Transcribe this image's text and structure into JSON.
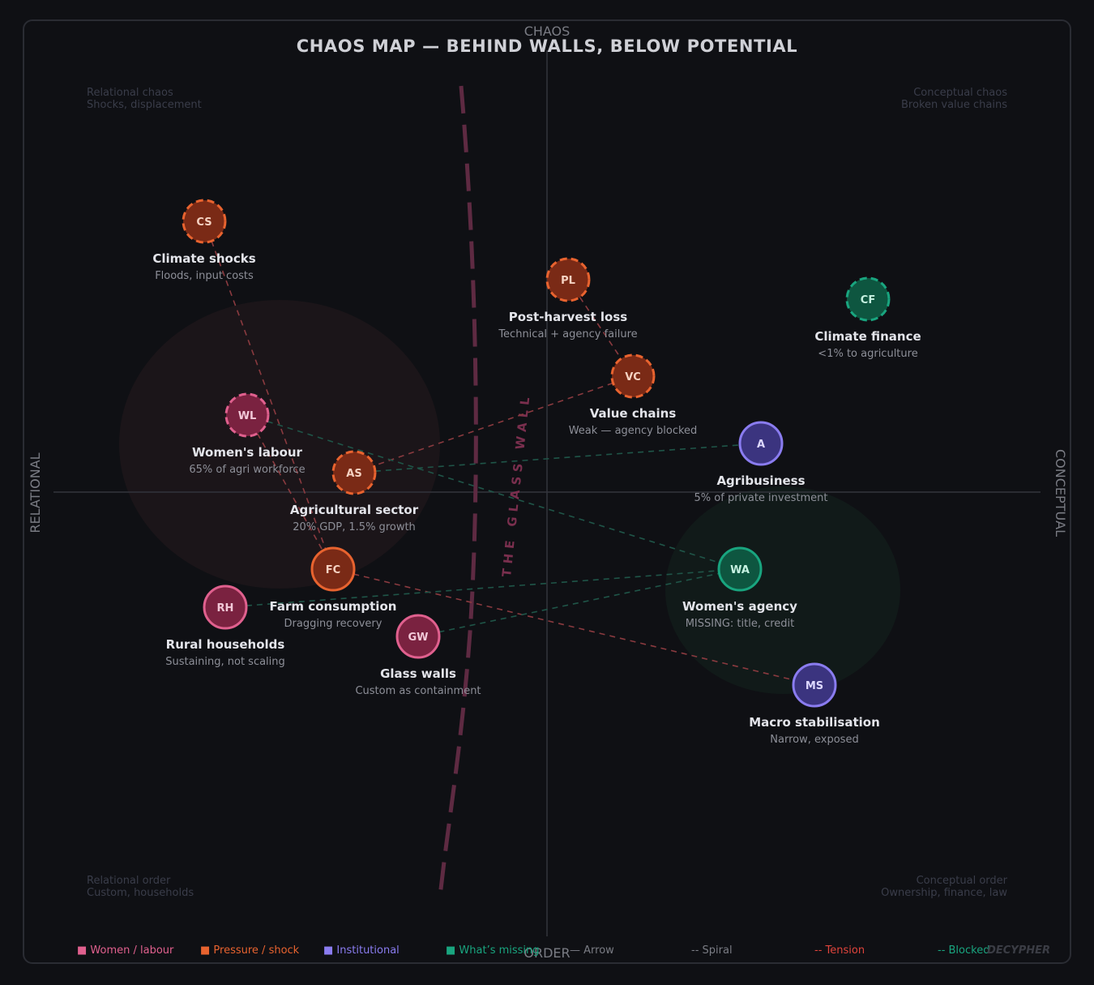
{
  "title": "CHAOS MAP — BEHIND WALLS, BELOW POTENTIAL",
  "axes": {
    "top": "CHAOS",
    "bottom": "ORDER",
    "left": "RELATIONAL",
    "right": "CONCEPTUAL"
  },
  "quadrants": {
    "top_left": [
      "Relational chaos",
      "Shocks, displacement"
    ],
    "top_right": [
      "Conceptual chaos",
      "Broken value chains"
    ],
    "bottom_left": [
      "Relational order",
      "Custom, households"
    ],
    "bottom_right": [
      "Conceptual order",
      "Ownership, finance, law"
    ]
  },
  "wall_label": "THE GLASS WALL",
  "colors": {
    "women": "#e0608e",
    "pressure": "#e8632f",
    "institutional": "#8a7cf0",
    "missing": "#19a57f",
    "tension": "#e0443c"
  },
  "nodes": [
    {
      "id": "CS",
      "label": "Climate shocks",
      "sub": "Floods, input costs",
      "kind": "pressure",
      "dashed": true
    },
    {
      "id": "PL",
      "label": "Post-harvest loss",
      "sub": "Technical + agency failure",
      "kind": "pressure",
      "dashed": true
    },
    {
      "id": "CF",
      "label": "Climate finance",
      "sub": "<1% to agriculture",
      "kind": "missing",
      "dashed": true
    },
    {
      "id": "VC",
      "label": "Value chains",
      "sub": "Weak — agency blocked",
      "kind": "pressure",
      "dashed": true
    },
    {
      "id": "WL",
      "label": "Women's labour",
      "sub": "65% of agri workforce",
      "kind": "women",
      "dashed": true
    },
    {
      "id": "A",
      "label": "Agribusiness",
      "sub": "5% of private investment",
      "kind": "institutional",
      "dashed": false
    },
    {
      "id": "AS",
      "label": "Agricultural sector",
      "sub": "20% GDP, 1.5% growth",
      "kind": "pressure",
      "dashed": true
    },
    {
      "id": "FC",
      "label": "Farm consumption",
      "sub": "Dragging recovery",
      "kind": "pressure",
      "dashed": false
    },
    {
      "id": "WA",
      "label": "Women's agency",
      "sub": "MISSING: title, credit",
      "kind": "missing",
      "dashed": false
    },
    {
      "id": "RH",
      "label": "Rural households",
      "sub": "Sustaining, not scaling",
      "kind": "women",
      "dashed": false
    },
    {
      "id": "GW",
      "label": "Glass walls",
      "sub": "Custom as containment",
      "kind": "women",
      "dashed": false
    },
    {
      "id": "MS",
      "label": "Macro stabilisation",
      "sub": "Narrow, exposed",
      "kind": "institutional",
      "dashed": false
    }
  ],
  "edges": [
    {
      "from": "CS",
      "to": "FC",
      "type": "tension"
    },
    {
      "from": "WL",
      "to": "FC",
      "type": "tension"
    },
    {
      "from": "PL",
      "to": "VC",
      "type": "tension"
    },
    {
      "from": "VC",
      "to": "AS",
      "type": "tension"
    },
    {
      "from": "FC",
      "to": "MS",
      "type": "tension"
    },
    {
      "from": "AS",
      "to": "A",
      "type": "blocked"
    },
    {
      "from": "WL",
      "to": "WA",
      "type": "blocked"
    },
    {
      "from": "RH",
      "to": "WA",
      "type": "blocked"
    },
    {
      "from": "GW",
      "to": "WA",
      "type": "blocked"
    }
  ],
  "legend": [
    {
      "label": "■ Women / labour",
      "color": "#e0608e"
    },
    {
      "label": "■ Pressure / shock",
      "color": "#e8632f"
    },
    {
      "label": "■ Institutional",
      "color": "#8a7cf0"
    },
    {
      "label": "■ What’s missing",
      "color": "#19a57f"
    },
    {
      "label": "— Arrow",
      "color": "#7a7c84"
    },
    {
      "label": "-- Spiral",
      "color": "#7a7c84"
    },
    {
      "label": "-- Tension",
      "color": "#e0443c"
    },
    {
      "label": "-- Blocked",
      "color": "#19a57f"
    }
  ],
  "brand": "DECYPHER"
}
